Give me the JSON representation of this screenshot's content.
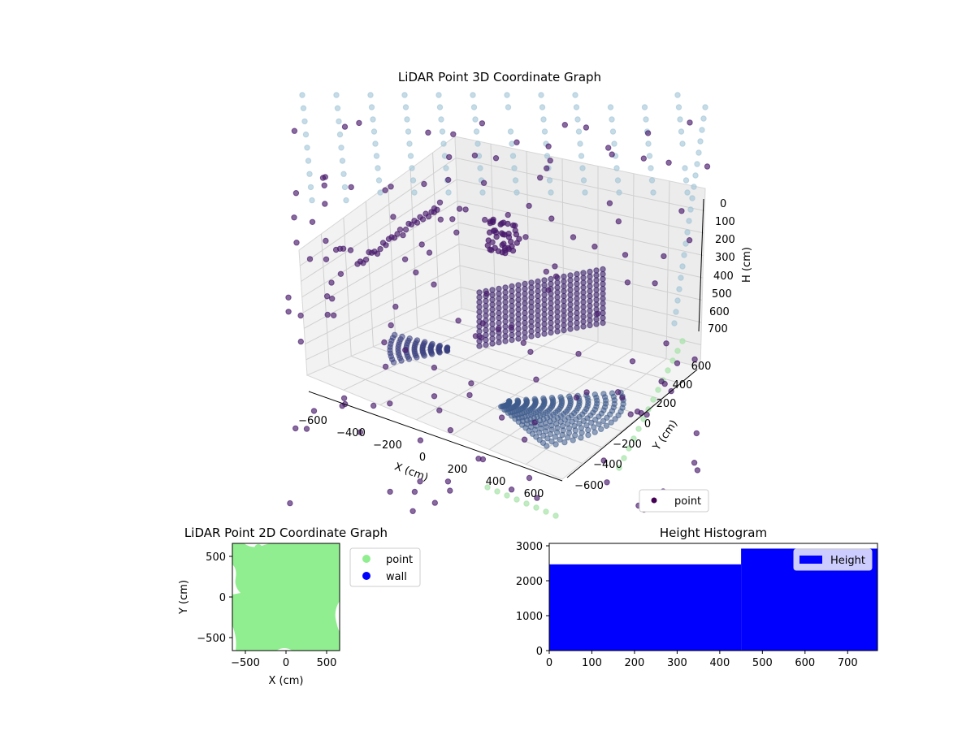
{
  "colors": {
    "dark_point": "#481a6c",
    "mid_point": "#3e5b8c",
    "light_point": "#9fc3d6",
    "green_point": "#a6e3a8",
    "point_2d": "#90ee90",
    "wall_2d": "#0000ff",
    "hist_bar": "#0000ff"
  },
  "chart_data": [
    {
      "type": "scatter",
      "title": "LiDAR Point 3D Coordinate Graph",
      "xlabel": "X (cm)",
      "ylabel": "Y (cm)",
      "zlabel": "H (cm)",
      "x_ticks": [
        "−600",
        "−400",
        "−200",
        "0",
        "200",
        "400",
        "600"
      ],
      "y_ticks": [
        "−600",
        "−400",
        "−200",
        "0",
        "200",
        "400",
        "600"
      ],
      "z_ticks": [
        "0",
        "100",
        "200",
        "300",
        "400",
        "500",
        "600",
        "700"
      ],
      "legend": [
        "point"
      ],
      "legend_position": "lower-right",
      "colormap": "viridis (by height)"
    },
    {
      "type": "scatter",
      "title": "LiDAR Point 2D Coordinate Graph",
      "xlabel": "X (cm)",
      "ylabel": "Y (cm)",
      "x_ticks": [
        "−500",
        "0",
        "500"
      ],
      "y_ticks": [
        "500",
        "0",
        "−500"
      ],
      "xlim": [
        -650,
        650
      ],
      "ylim": [
        -650,
        650
      ],
      "legend": [
        "point",
        "wall"
      ],
      "legend_position": "outside-right"
    },
    {
      "type": "bar",
      "title": "Height Histogram",
      "series": [
        {
          "name": "Height",
          "bins": [
            [
              0,
              450
            ],
            [
              450,
              770
            ]
          ],
          "values": [
            2470,
            2920
          ]
        }
      ],
      "x_ticks": [
        "0",
        "100",
        "200",
        "300",
        "400",
        "500",
        "600",
        "700"
      ],
      "y_ticks": [
        "0",
        "1000",
        "2000",
        "3000"
      ],
      "xlim": [
        0,
        770
      ],
      "ylim": [
        0,
        3070
      ],
      "legend": [
        "Height"
      ],
      "legend_position": "top-right"
    }
  ]
}
